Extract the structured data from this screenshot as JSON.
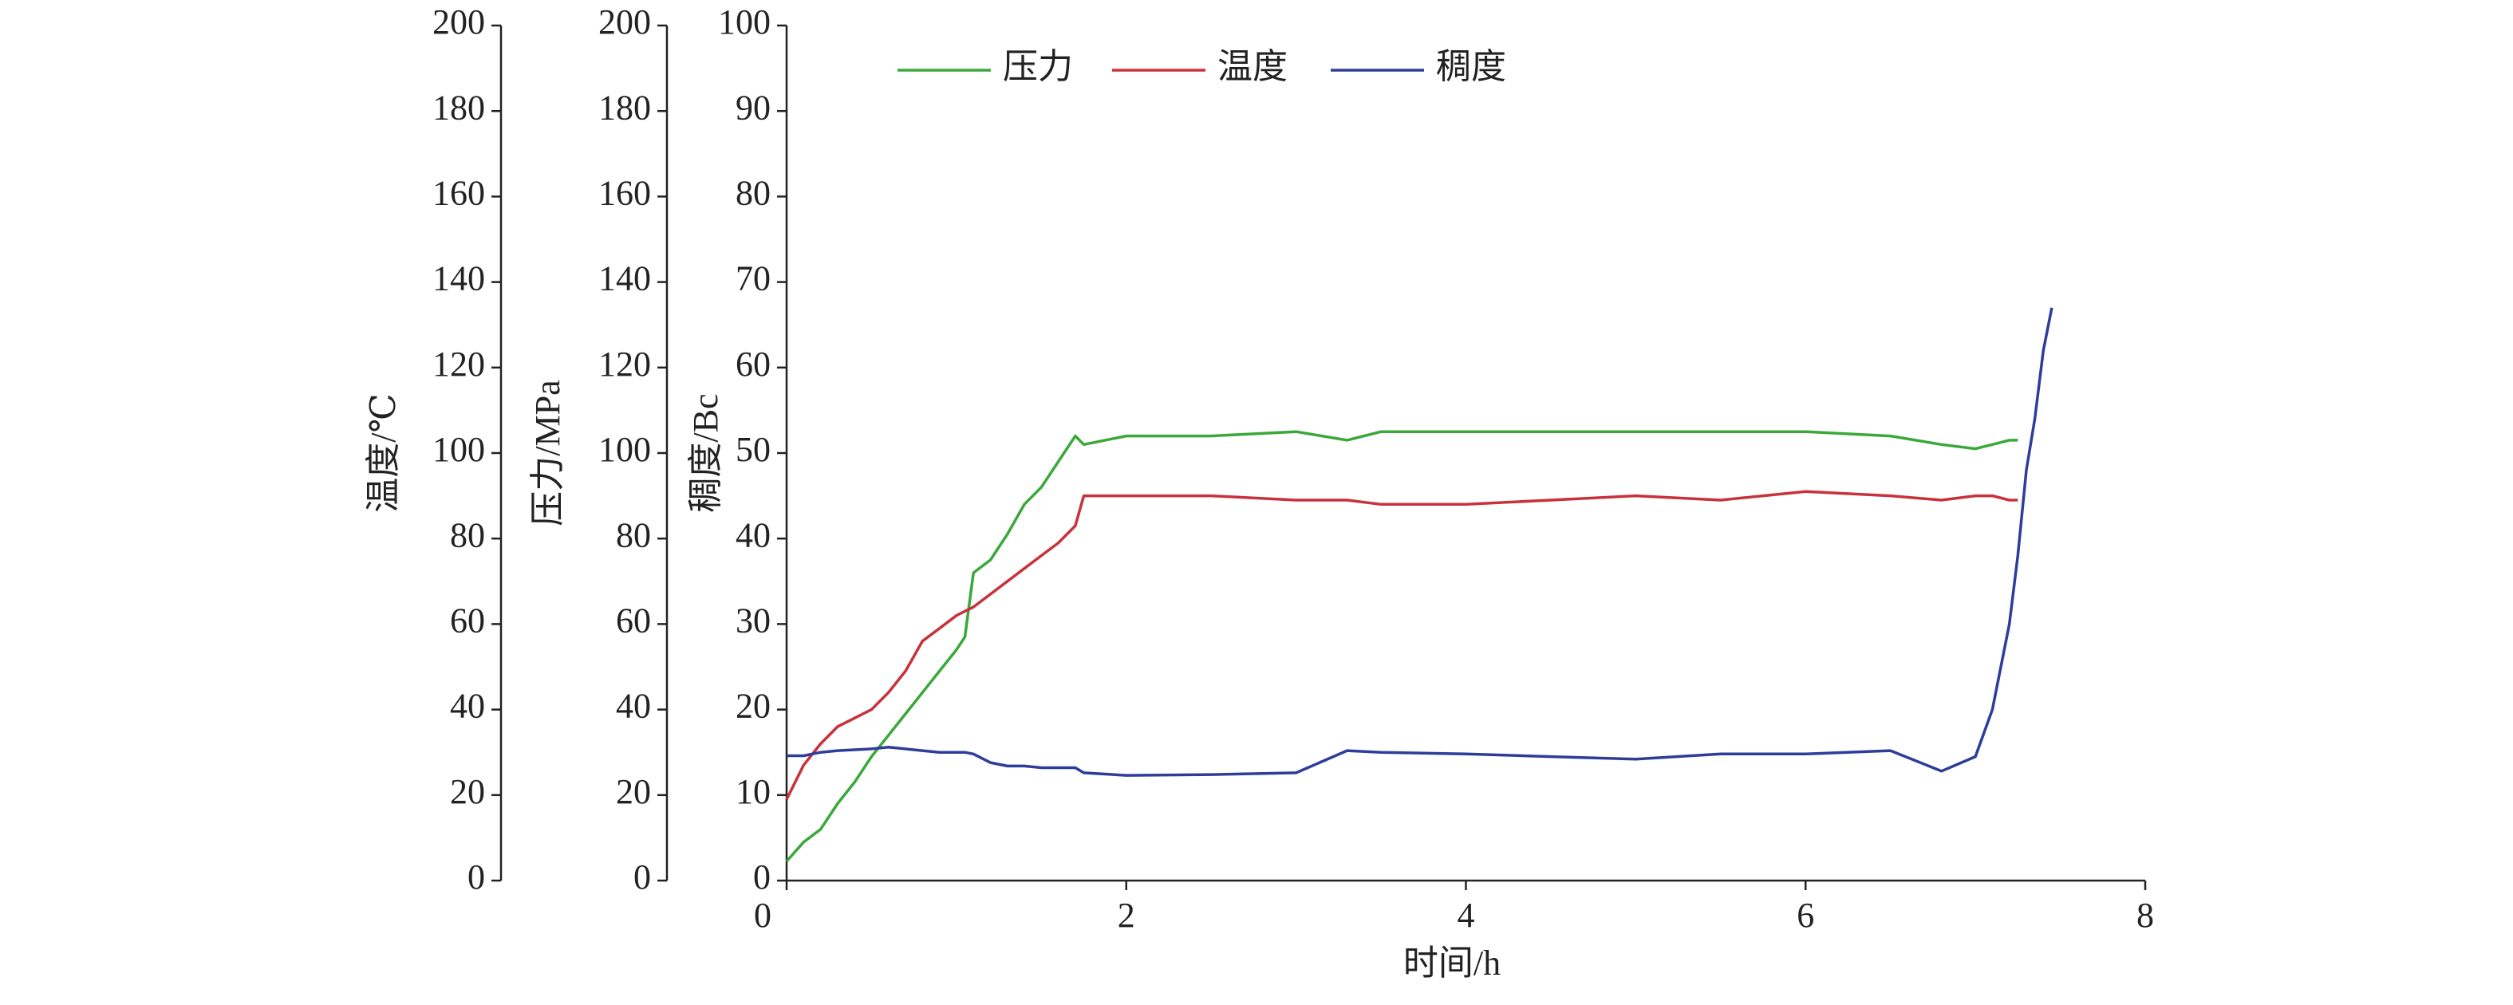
{
  "chart_data": {
    "type": "line",
    "x_label": "时间/h",
    "y_label": "稠度/Bc",
    "y2_label": "压力/MPa",
    "y3_label": "温度/℃",
    "xlim": [
      0,
      8
    ],
    "xticks": [
      0,
      2,
      4,
      6,
      8
    ],
    "ylim": [
      0,
      100
    ],
    "yticks": [
      0,
      10,
      20,
      30,
      40,
      50,
      60,
      70,
      80,
      90,
      100
    ],
    "y2lim": [
      0,
      200
    ],
    "y2ticks": [
      0,
      20,
      40,
      60,
      80,
      100,
      120,
      140,
      160,
      180,
      200
    ],
    "y3lim": [
      0,
      200
    ],
    "y3ticks": [
      0,
      20,
      40,
      60,
      80,
      100,
      120,
      140,
      160,
      180,
      200
    ],
    "grid": false,
    "legend": "top",
    "x": [
      0,
      0.1,
      0.2,
      0.3,
      0.4,
      0.5,
      0.6,
      0.7,
      0.8,
      0.9,
      1.0,
      1.05,
      1.1,
      1.2,
      1.3,
      1.4,
      1.5,
      1.6,
      1.7,
      1.75,
      2,
      2.5,
      3,
      3.3,
      3.5,
      4,
      4.5,
      5,
      5.5,
      6,
      6.5,
      6.8,
      7.0,
      7.1,
      7.2,
      7.25,
      7.3,
      7.35,
      7.4,
      7.45
    ],
    "series": [
      {
        "name": "压力",
        "color": "#3aa83a",
        "axis": "y2",
        "values": [
          4.5,
          9,
          12,
          18,
          23,
          29,
          34,
          39,
          44,
          49,
          54,
          57,
          72,
          75,
          81,
          88,
          92,
          98,
          104,
          102,
          104,
          104,
          105,
          103,
          105,
          105,
          105,
          105,
          105,
          105,
          104,
          102,
          101,
          102,
          103,
          103,
          null,
          null,
          null,
          null
        ]
      },
      {
        "name": "温度",
        "color": "#c8323c",
        "axis": "y3",
        "values": [
          19,
          27,
          32,
          36,
          38,
          40,
          44,
          49,
          56,
          59,
          62,
          63,
          64,
          67,
          70,
          73,
          76,
          79,
          83,
          90,
          90,
          90,
          89,
          89,
          88,
          88,
          89,
          90,
          89,
          91,
          90,
          89,
          90,
          90,
          89,
          89,
          null,
          null,
          null,
          null
        ]
      },
      {
        "name": "稠度",
        "color": "#2e3d9a",
        "axis": "y",
        "values": [
          14.6,
          14.6,
          15,
          15.2,
          15.3,
          15.4,
          15.6,
          15.4,
          15.2,
          15,
          15,
          15,
          14.8,
          13.8,
          13.4,
          13.4,
          13.2,
          13.2,
          13.2,
          12.6,
          12.3,
          12.4,
          12.6,
          15.2,
          15,
          14.8,
          14.5,
          14.2,
          14.8,
          14.8,
          15.2,
          12.8,
          14.5,
          20,
          30,
          38,
          48,
          54,
          62,
          67
        ]
      }
    ]
  }
}
